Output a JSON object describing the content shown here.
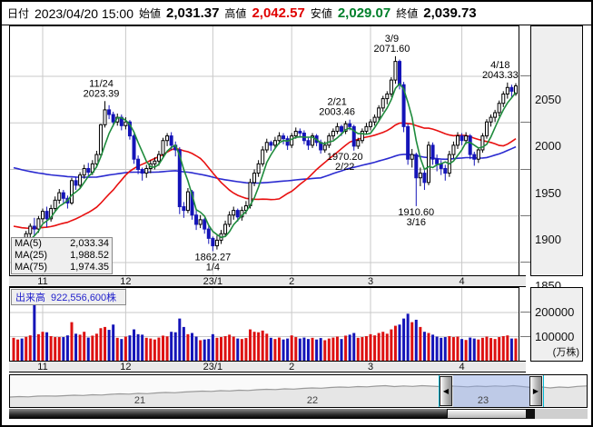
{
  "header": {
    "date_label": "日付",
    "date": "2023/04/20 15:00",
    "open_label": "始値",
    "open": "2,031.37",
    "high_label": "高値",
    "high": "2,042.57",
    "low_label": "安値",
    "low": "2,029.07",
    "close_label": "終値",
    "close": "2,039.73"
  },
  "colors": {
    "up_candle": "#ffffff",
    "up_stroke": "#000000",
    "down_candle": "#1414b8",
    "ma5": "#1e8b3c",
    "ma25": "#e81010",
    "ma75": "#2b2bd0",
    "vol_up": "#dd1111",
    "vol_down": "#1414b8",
    "grid": "#c9c9c9",
    "high_text": "#e00000",
    "low_text": "#00802b",
    "selection": "#8fa8e8",
    "guide": "#00b8d4"
  },
  "ma_legend": {
    "items": [
      {
        "label": "MA(5)",
        "value": "2,033.34",
        "color": "#1e8b3c"
      },
      {
        "label": "MA(25)",
        "value": "1,988.52",
        "color": "#e81010"
      },
      {
        "label": "MA(75)",
        "value": "1,974.35",
        "color": "#2b2bd0"
      }
    ]
  },
  "volume_legend": {
    "label": "出来高",
    "value": "922,556,600株"
  },
  "chart_data": {
    "type": "candlestick+volume",
    "price_axis": {
      "ticks": [
        2050,
        2000,
        1950,
        1900,
        1850
      ],
      "pixels_per_point": 1.025,
      "top_price_at_y55": 2050
    },
    "volume_axis": {
      "ticks": [
        200000,
        100000
      ],
      "unit": "(万株)"
    },
    "x_ticks": [
      {
        "label": "11",
        "index": 7
      },
      {
        "label": "12",
        "index": 27
      },
      {
        "label": "23/1",
        "index": 48
      },
      {
        "label": "2",
        "index": 67
      },
      {
        "label": "3",
        "index": 86
      },
      {
        "label": "4",
        "index": 108
      }
    ],
    "annotations": [
      {
        "lines": [
          "11/24",
          "2023.39"
        ],
        "index": 22,
        "price": 2023.39,
        "position": "above",
        "dx": -4
      },
      {
        "lines": [
          "1862.27",
          "1/4"
        ],
        "index": 48,
        "price": 1862.27,
        "position": "below",
        "dx": 0
      },
      {
        "lines": [
          "2/21",
          "2003.46"
        ],
        "index": 81,
        "price": 2003.46,
        "position": "above",
        "dx": -14
      },
      {
        "lines": [
          "1970.20",
          "2/22"
        ],
        "index": 82,
        "price": 1970.2,
        "position": "below",
        "dx": -10
      },
      {
        "lines": [
          "3/9",
          "2071.60"
        ],
        "index": 92,
        "price": 2071.6,
        "position": "above",
        "dx": -4
      },
      {
        "lines": [
          "1910.60",
          "3/16"
        ],
        "index": 97,
        "price": 1910.6,
        "position": "below",
        "dx": 0
      },
      {
        "lines": [
          "4/18",
          "2043.33"
        ],
        "index": 119,
        "price": 2043.33,
        "position": "above",
        "dx": -8
      }
    ],
    "ma_windows": {
      "ma5": 5,
      "ma25": 25,
      "ma75": 75
    },
    "ma_seeds": {
      "ma25": 1890,
      "ma75": 1953
    },
    "candles": [
      [
        1858,
        1868,
        1852,
        1865,
        95000
      ],
      [
        1865,
        1876,
        1860,
        1872,
        88000
      ],
      [
        1872,
        1875,
        1862,
        1866,
        92000
      ],
      [
        1866,
        1884,
        1864,
        1881,
        99000
      ],
      [
        1881,
        1892,
        1876,
        1889,
        105000
      ],
      [
        1889,
        1898,
        1879,
        1886,
        235000
      ],
      [
        1886,
        1900,
        1882,
        1897,
        110000
      ],
      [
        1897,
        1908,
        1893,
        1905,
        120000
      ],
      [
        1905,
        1910,
        1888,
        1897,
        118000
      ],
      [
        1897,
        1912,
        1894,
        1908,
        102000
      ],
      [
        1908,
        1921,
        1905,
        1917,
        98000
      ],
      [
        1917,
        1929,
        1913,
        1925,
        98000
      ],
      [
        1925,
        1928,
        1914,
        1919,
        98000
      ],
      [
        1919,
        1922,
        1908,
        1914,
        105000
      ],
      [
        1914,
        1941,
        1912,
        1938,
        160000
      ],
      [
        1938,
        1942,
        1928,
        1933,
        112000
      ],
      [
        1933,
        1947,
        1930,
        1944,
        108000
      ],
      [
        1944,
        1955,
        1940,
        1951,
        120000
      ],
      [
        1951,
        1957,
        1942,
        1947,
        96000
      ],
      [
        1947,
        1960,
        1944,
        1956,
        104000
      ],
      [
        1956,
        1970,
        1952,
        1966,
        112000
      ],
      [
        1966,
        1999,
        1963,
        1998,
        135000
      ],
      [
        1998,
        2023.39,
        1995,
        2014,
        140000
      ],
      [
        2014,
        2019,
        2004,
        2009,
        128000
      ],
      [
        2009,
        2012,
        1996,
        2001,
        150000
      ],
      [
        2001,
        2010,
        1997,
        2006,
        95000
      ],
      [
        2006,
        2009,
        1992,
        1997,
        90000
      ],
      [
        1997,
        2006,
        1993,
        2001,
        100000
      ],
      [
        2001,
        2003,
        1982,
        1986,
        105000
      ],
      [
        1986,
        1988,
        1956,
        1961,
        130000
      ],
      [
        1961,
        1965,
        1945,
        1950,
        110000
      ],
      [
        1950,
        1952,
        1938,
        1946,
        108000
      ],
      [
        1946,
        1955,
        1941,
        1951,
        95000
      ],
      [
        1951,
        1960,
        1946,
        1956,
        92000
      ],
      [
        1956,
        1963,
        1950,
        1959,
        88000
      ],
      [
        1959,
        1970,
        1954,
        1966,
        96000
      ],
      [
        1966,
        1984,
        1962,
        1981,
        104000
      ],
      [
        1981,
        1989,
        1975,
        1986,
        101000
      ],
      [
        1986,
        1990,
        1971,
        1976,
        120000
      ],
      [
        1976,
        1980,
        1964,
        1971,
        118000
      ],
      [
        1971,
        1974,
        1902,
        1910,
        175000
      ],
      [
        1910,
        1915,
        1898,
        1906,
        140000
      ],
      [
        1906,
        1930,
        1903,
        1926,
        110000
      ],
      [
        1926,
        1928,
        1896,
        1901,
        115000
      ],
      [
        1901,
        1906,
        1885,
        1891,
        100000
      ],
      [
        1891,
        1901,
        1887,
        1896,
        85000
      ],
      [
        1896,
        1898,
        1881,
        1886,
        88000
      ],
      [
        1886,
        1890,
        1870,
        1876,
        90000
      ],
      [
        1876,
        1878,
        1862.27,
        1868,
        110000
      ],
      [
        1868,
        1879,
        1864,
        1874,
        95000
      ],
      [
        1874,
        1885,
        1870,
        1881,
        98000
      ],
      [
        1881,
        1895,
        1878,
        1891,
        102000
      ],
      [
        1891,
        1905,
        1888,
        1901,
        108000
      ],
      [
        1901,
        1910,
        1896,
        1906,
        100000
      ],
      [
        1906,
        1908,
        1894,
        1899,
        92000
      ],
      [
        1899,
        1910,
        1895,
        1906,
        90000
      ],
      [
        1906,
        1916,
        1902,
        1911,
        94000
      ],
      [
        1911,
        1940,
        1908,
        1936,
        130000
      ],
      [
        1936,
        1950,
        1932,
        1946,
        120000
      ],
      [
        1946,
        1960,
        1942,
        1956,
        118000
      ],
      [
        1956,
        1975,
        1953,
        1971,
        125000
      ],
      [
        1971,
        1983,
        1968,
        1979,
        112000
      ],
      [
        1979,
        1981,
        1970,
        1976,
        95000
      ],
      [
        1976,
        1985,
        1972,
        1981,
        90000
      ],
      [
        1981,
        1990,
        1977,
        1986,
        96000
      ],
      [
        1986,
        1989,
        1977,
        1983,
        88000
      ],
      [
        1983,
        1986,
        1971,
        1976,
        92000
      ],
      [
        1976,
        1989,
        1973,
        1986,
        105000
      ],
      [
        1986,
        1995,
        1983,
        1991,
        98000
      ],
      [
        1991,
        1994,
        1984,
        1989,
        92000
      ],
      [
        1989,
        1992,
        1977,
        1981,
        96000
      ],
      [
        1981,
        1984,
        1971,
        1976,
        90000
      ],
      [
        1976,
        1989,
        1973,
        1986,
        95000
      ],
      [
        1986,
        1988,
        1975,
        1979,
        88000
      ],
      [
        1979,
        1982,
        1967,
        1971,
        94000
      ],
      [
        1971,
        1980,
        1968,
        1976,
        85000
      ],
      [
        1976,
        1989,
        1973,
        1986,
        92000
      ],
      [
        1986,
        1994,
        1982,
        1991,
        96000
      ],
      [
        1991,
        2000,
        1988,
        1996,
        100000
      ],
      [
        1996,
        1998,
        1986,
        1991,
        90000
      ],
      [
        1991,
        2002,
        1988,
        1999,
        104000
      ],
      [
        1999,
        2003.46,
        1992,
        1996,
        108000
      ],
      [
        1996,
        1998,
        1970.2,
        1975,
        115000
      ],
      [
        1975,
        1984,
        1972,
        1981,
        95000
      ],
      [
        1981,
        1994,
        1978,
        1991,
        98000
      ],
      [
        1991,
        2000,
        1988,
        1996,
        102000
      ],
      [
        1996,
        2004,
        1992,
        2001,
        110000
      ],
      [
        2001,
        2009,
        1997,
        2006,
        105000
      ],
      [
        2006,
        2019,
        2002,
        2016,
        115000
      ],
      [
        2016,
        2029,
        2012,
        2026,
        120000
      ],
      [
        2026,
        2034,
        2020,
        2031,
        112000
      ],
      [
        2031,
        2049,
        2028,
        2046,
        130000
      ],
      [
        2046,
        2071.6,
        2042,
        2066,
        145000
      ],
      [
        2066,
        2068,
        2036,
        2041,
        150000
      ],
      [
        2041,
        2044,
        1990,
        1996,
        175000
      ],
      [
        1996,
        1999,
        1955,
        1961,
        195000
      ],
      [
        1961,
        1972,
        1952,
        1966,
        160000
      ],
      [
        1966,
        1968,
        1910.6,
        1941,
        170000
      ],
      [
        1941,
        1952,
        1932,
        1946,
        140000
      ],
      [
        1946,
        1949,
        1928,
        1936,
        120000
      ],
      [
        1936,
        1980,
        1933,
        1976,
        115000
      ],
      [
        1976,
        1979,
        1955,
        1961,
        108000
      ],
      [
        1961,
        1966,
        1948,
        1956,
        100000
      ],
      [
        1956,
        1960,
        1944,
        1951,
        95000
      ],
      [
        1951,
        1955,
        1938,
        1946,
        98000
      ],
      [
        1946,
        1970,
        1942,
        1966,
        102000
      ],
      [
        1966,
        1980,
        1962,
        1976,
        98000
      ],
      [
        1976,
        1990,
        1972,
        1986,
        100000
      ],
      [
        1986,
        1989,
        1976,
        1981,
        90000
      ],
      [
        1981,
        1990,
        1977,
        1986,
        86000
      ],
      [
        1986,
        1988,
        1961,
        1966,
        96000
      ],
      [
        1966,
        1969,
        1954,
        1961,
        92000
      ],
      [
        1961,
        1974,
        1957,
        1971,
        88000
      ],
      [
        1971,
        1989,
        1968,
        1986,
        95000
      ],
      [
        1986,
        2004,
        1983,
        2001,
        100000
      ],
      [
        2001,
        2009,
        1996,
        2006,
        94000
      ],
      [
        2006,
        2014,
        2001,
        2011,
        90000
      ],
      [
        2011,
        2024,
        2007,
        2021,
        98000
      ],
      [
        2021,
        2034,
        2017,
        2031,
        102000
      ],
      [
        2031,
        2043.33,
        2026,
        2038,
        105000
      ],
      [
        2038,
        2041,
        2028,
        2034,
        92000
      ],
      [
        2031.37,
        2042.57,
        2029.07,
        2039.73,
        92256
      ]
    ]
  },
  "navigator": {
    "labels": [
      {
        "text": "21",
        "x": 151
      },
      {
        "text": "22",
        "x": 341
      },
      {
        "text": "23",
        "x": 529
      }
    ],
    "selection": {
      "start": 496,
      "end": 580
    },
    "points": [
      0.28,
      0.3,
      0.29,
      0.32,
      0.33,
      0.32,
      0.34,
      0.36,
      0.35,
      0.38,
      0.37,
      0.4,
      0.42,
      0.41,
      0.44,
      0.43,
      0.46,
      0.48,
      0.47,
      0.5,
      0.52,
      0.54,
      0.53,
      0.56,
      0.55,
      0.58,
      0.57,
      0.6,
      0.62,
      0.61,
      0.64,
      0.63,
      0.66,
      0.68,
      0.67,
      0.7,
      0.72,
      0.71,
      0.74,
      0.73,
      0.76,
      0.78,
      0.74,
      0.77,
      0.75,
      0.78,
      0.76,
      0.74,
      0.77,
      0.75,
      0.73,
      0.76,
      0.74,
      0.77,
      0.75,
      0.78,
      0.74,
      0.7,
      0.73,
      0.68,
      0.72,
      0.7,
      0.75,
      0.77
    ]
  }
}
